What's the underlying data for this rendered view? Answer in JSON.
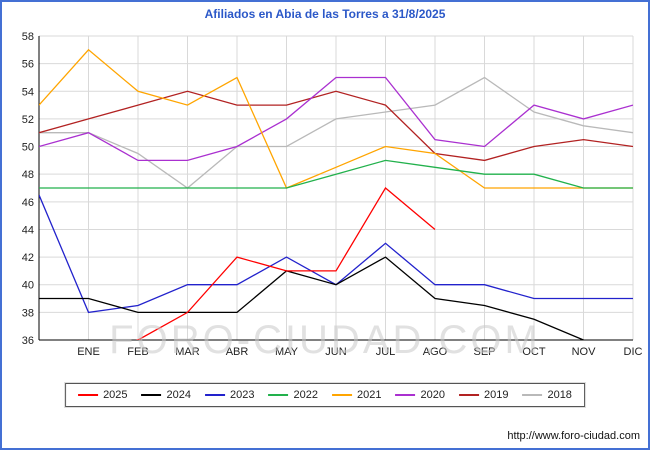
{
  "title": "Afiliados en Abia de las Torres a 31/8/2025",
  "watermark": "FORO-CIUDAD.COM",
  "footer_url": "http://www.foro-ciudad.com",
  "colors": {
    "frame_border": "#4470d4",
    "title": "#2b58c8",
    "gridline": "#d9d9d9",
    "axis": "#000000",
    "watermark": "#c9c9c9"
  },
  "chart_data": {
    "type": "line",
    "title": "Afiliados en Abia de las Torres a 31/8/2025",
    "xlabel": "",
    "ylabel": "",
    "ylim": [
      36,
      58
    ],
    "ytick_step": 2,
    "grid": true,
    "legend_position": "bottom",
    "categories": [
      "",
      "ENE",
      "FEB",
      "MAR",
      "ABR",
      "MAY",
      "JUN",
      "JUL",
      "AGO",
      "SEP",
      "OCT",
      "NOV",
      "DIC"
    ],
    "series": [
      {
        "name": "2025",
        "color": "#ff0000",
        "values": [
          null,
          35,
          36,
          38,
          42,
          41,
          41,
          47,
          44,
          null,
          null,
          null,
          null
        ]
      },
      {
        "name": "2024",
        "color": "#000000",
        "values": [
          39,
          39,
          38,
          38,
          38,
          41,
          40,
          42,
          39,
          38.5,
          37.5,
          36,
          35
        ]
      },
      {
        "name": "2023",
        "color": "#2222cc",
        "values": [
          46.5,
          38,
          38.5,
          40,
          40,
          42,
          40,
          43,
          40,
          40,
          39,
          39,
          39
        ]
      },
      {
        "name": "2022",
        "color": "#22b14c",
        "values": [
          47,
          47,
          47,
          47,
          47,
          47,
          48,
          49,
          48.5,
          48,
          48,
          47,
          47
        ]
      },
      {
        "name": "2021",
        "color": "#ffa500",
        "values": [
          53,
          57,
          54,
          53,
          55,
          47,
          48.5,
          50,
          49.5,
          47,
          47,
          47,
          47
        ]
      },
      {
        "name": "2020",
        "color": "#aa30d0",
        "values": [
          50,
          51,
          49,
          49,
          50,
          52,
          55,
          55,
          50.5,
          50,
          53,
          52,
          53
        ]
      },
      {
        "name": "2019",
        "color": "#b22222",
        "values": [
          51,
          52,
          53,
          54,
          53,
          53,
          54,
          53,
          49.5,
          49,
          50,
          50.5,
          50
        ]
      },
      {
        "name": "2018",
        "color": "#b9b9b9",
        "values": [
          51,
          51,
          49.5,
          47,
          50,
          50,
          52,
          52.5,
          53,
          55,
          52.5,
          51.5,
          51
        ]
      }
    ]
  }
}
